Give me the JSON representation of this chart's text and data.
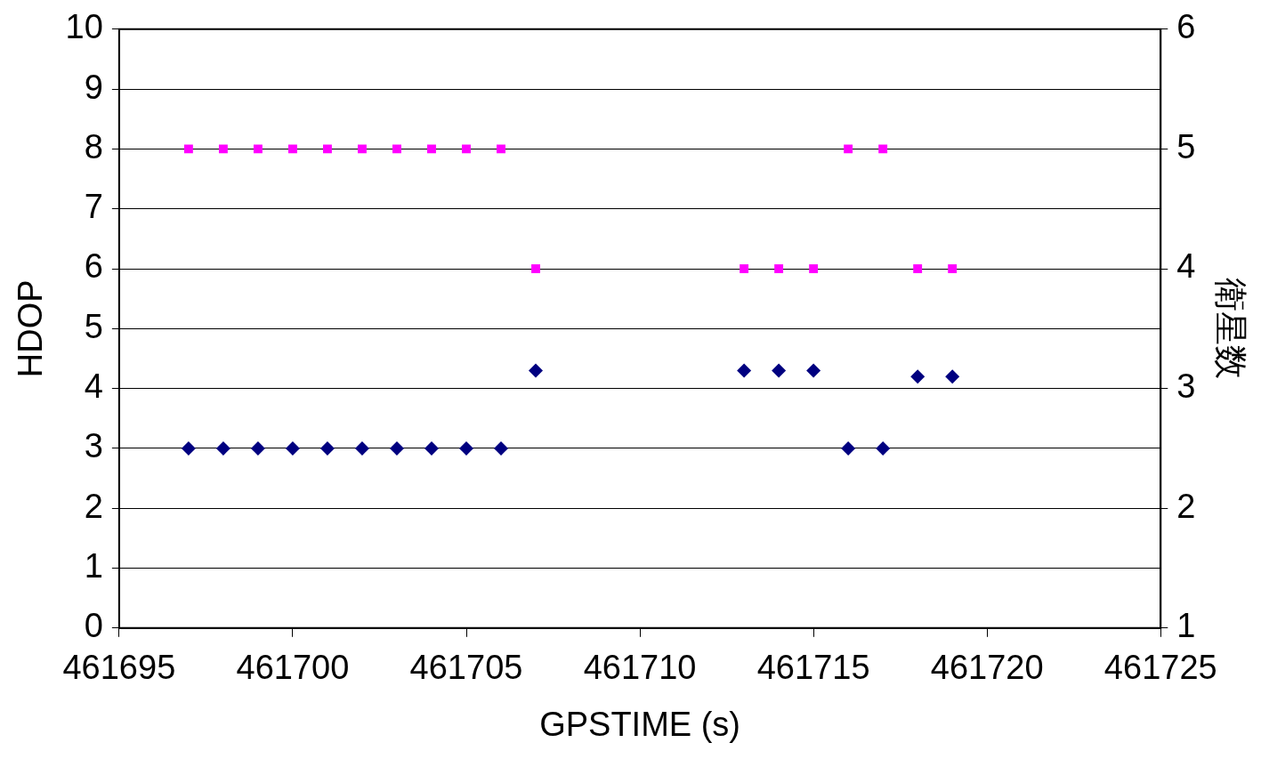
{
  "chart_data": {
    "type": "scatter",
    "xlabel": "GPSTIME (s)",
    "ylabel": "HDOP",
    "y2label": "衛星数",
    "xlim": [
      461695,
      461725
    ],
    "xticks": [
      461695,
      461700,
      461705,
      461710,
      461715,
      461720,
      461725
    ],
    "ylim": [
      0,
      10
    ],
    "yticks": [
      0,
      1,
      2,
      3,
      4,
      5,
      6,
      7,
      8,
      9,
      10
    ],
    "y2lim": [
      1,
      6
    ],
    "y2ticks": [
      1,
      2,
      3,
      4,
      5,
      6
    ],
    "grid": "y",
    "legend": false,
    "series": [
      {
        "color": "#000080",
        "marker": "diamond",
        "x": [
          461697,
          461698,
          461699,
          461700,
          461701,
          461702,
          461703,
          461704,
          461705,
          461706,
          461707,
          461713,
          461714,
          461715,
          461716,
          461717,
          461718,
          461719
        ],
        "values": [
          3,
          3,
          3,
          3,
          3,
          3,
          3,
          3,
          3,
          3,
          4.3,
          4.3,
          4.3,
          4.3,
          3,
          3,
          4.2,
          4.2
        ]
      },
      {
        "color": "#ff00ff",
        "marker": "square",
        "axis": "y2",
        "x": [
          461697,
          461698,
          461699,
          461700,
          461701,
          461702,
          461703,
          461704,
          461705,
          461706,
          461707,
          461713,
          461714,
          461715,
          461716,
          461717,
          461718,
          461719
        ],
        "values": [
          5,
          5,
          5,
          5,
          5,
          5,
          5,
          5,
          5,
          5,
          4,
          4,
          4,
          4,
          5,
          5,
          4,
          4
        ]
      }
    ]
  }
}
